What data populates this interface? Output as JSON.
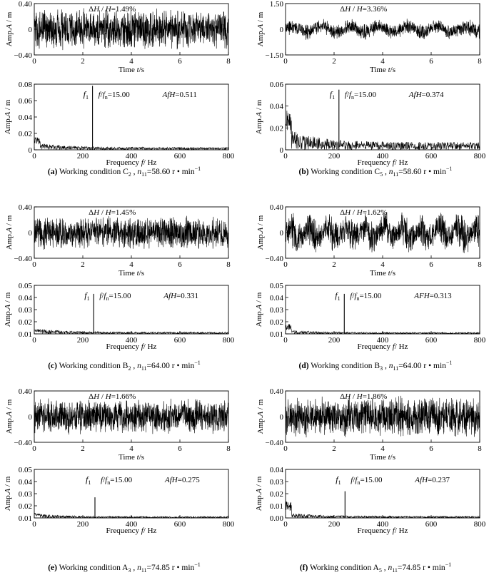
{
  "panels": [
    {
      "caption": {
        "letter": "(a)",
        "text": " Working condition C",
        "sub": "2",
        "n_sub": "11",
        "value": "=58.60 r • min",
        "sup": "−1"
      },
      "time": {
        "title": "Time t/s",
        "ylabel": "Amp.A / m",
        "ylim": [
          -0.4,
          0.4
        ],
        "yticks": [
          "0.40",
          "0",
          "−0.40"
        ],
        "xticks": [
          "0",
          "2",
          "4",
          "6",
          "8"
        ],
        "annotation": "ΔH / H=1.49%",
        "series": {
          "name": "pressure fluctuation",
          "xlim": [
            0,
            8
          ],
          "amplitude": 0.3
        }
      },
      "spectrum": {
        "title": "Frequency f/ Hz",
        "ylabel": "Amp.A / m",
        "ylim": [
          0,
          0.08
        ],
        "yticks": [
          "0",
          "0.02",
          "0.04",
          "0.06",
          "0.08"
        ],
        "xticks": [
          "0",
          "200",
          "400",
          "600",
          "800"
        ],
        "peak_label": "f",
        "peak_sub": "1",
        "ratio_text": "f/f",
        "ratio_sub": "n",
        "ratio_value": "=15.00",
        "afh": "AfH=0.511",
        "peak": {
          "frequency": 240,
          "amplitude": 0.078
        },
        "low_freq_amplitude": 0.016,
        "noise_level": 0.003
      }
    },
    {
      "caption": {
        "letter": "(b)",
        "text": " Working condition C",
        "sub": "5",
        "n_sub": "11",
        "value": "=58.60 r • min",
        "sup": "−1"
      },
      "time": {
        "title": "Time t/s",
        "ylabel": "Amp.A / m",
        "ylim": [
          -1.5,
          1.5
        ],
        "yticks": [
          "1.50",
          "0",
          "−1.50"
        ],
        "xticks": [
          "0",
          "2",
          "4",
          "6",
          "8"
        ],
        "annotation": "ΔH / H=3.36%",
        "series": {
          "name": "pressure fluctuation",
          "xlim": [
            0,
            8
          ],
          "amplitude": 0.55
        }
      },
      "spectrum": {
        "title": "Frequency f/ Hz",
        "ylabel": "Amp.A / m",
        "ylim": [
          0,
          0.06
        ],
        "yticks": [
          "0",
          "0.02",
          "0.04",
          "0.06"
        ],
        "xticks": [
          "0",
          "200",
          "400",
          "600",
          "800"
        ],
        "peak_label": "f",
        "peak_sub": "1",
        "ratio_text": "f/f",
        "ratio_sub": "n",
        "ratio_value": "=15.00",
        "afh": "AfH=0.374",
        "peak": {
          "frequency": 220,
          "amplitude": 0.055
        },
        "low_freq_amplitude": 0.036,
        "noise_level": 0.007
      }
    },
    {
      "caption": {
        "letter": "(c)",
        "text": " Working condition B",
        "sub": "2",
        "n_sub": "11",
        "value": "=64.00 r • min",
        "sup": "−1"
      },
      "time": {
        "title": "Time t/s",
        "ylabel": "Amp.A / m",
        "ylim": [
          -0.4,
          0.4
        ],
        "yticks": [
          "0.40",
          "0",
          "−0.40"
        ],
        "xticks": [
          "0",
          "2",
          "4",
          "6",
          "8"
        ],
        "annotation": "ΔH / H=1.45%",
        "series": {
          "name": "pressure fluctuation",
          "xlim": [
            0,
            8
          ],
          "amplitude": 0.25
        }
      },
      "spectrum": {
        "title": "Frequency f/ Hz",
        "ylabel": "Amp.A / m",
        "ylim": [
          0.01,
          0.05
        ],
        "yticks": [
          "0.01",
          "0.02",
          "0.03",
          "0.04",
          "0.05"
        ],
        "xticks": [
          "0",
          "200",
          "400",
          "600",
          "800"
        ],
        "peak_label": "f",
        "peak_sub": "1",
        "ratio_text": "f/f",
        "ratio_sub": "n",
        "ratio_value": "=15.00",
        "afh": "AfH=0.331",
        "peak": {
          "frequency": 245,
          "amplitude": 0.043
        },
        "low_freq_amplitude": 0.014,
        "noise_level": 0.0015
      }
    },
    {
      "caption": {
        "letter": "(d)",
        "text": " Working condition B",
        "sub": "3",
        "n_sub": "11",
        "value": "=64.00 r • min",
        "sup": "−1"
      },
      "time": {
        "title": "Time t/s",
        "ylabel": "Amp.A / m",
        "ylim": [
          -0.4,
          0.4
        ],
        "yticks": [
          "0.40",
          "0",
          "−0.40"
        ],
        "xticks": [
          "0",
          "2",
          "4",
          "6",
          "8"
        ],
        "annotation": "ΔH / H=1.62%",
        "series": {
          "name": "pressure fluctuation",
          "xlim": [
            0,
            8
          ],
          "amplitude": 0.28
        }
      },
      "spectrum": {
        "title": "Frequency f/ Hz",
        "ylabel": "Amp.A / m",
        "ylim": [
          0.01,
          0.05
        ],
        "yticks": [
          "0.01",
          "0.02",
          "0.03",
          "0.04",
          "0.05"
        ],
        "xticks": [
          "0",
          "200",
          "400",
          "600",
          "800"
        ],
        "peak_label": "f",
        "peak_sub": "1",
        "ratio_text": "f/f",
        "ratio_sub": "n",
        "ratio_value": "=15.00",
        "afh": "AFH=0.313",
        "peak": {
          "frequency": 242,
          "amplitude": 0.043
        },
        "low_freq_amplitude": 0.018,
        "noise_level": 0.0012
      }
    },
    {
      "caption": {
        "letter": "(e)",
        "text": " Working condition A",
        "sub": "3",
        "n_sub": "11",
        "value": "=74.85 r • min",
        "sup": "−1"
      },
      "time": {
        "title": "Time t/s",
        "ylabel": "Amp.A / m",
        "ylim": [
          -0.4,
          0.4
        ],
        "yticks": [
          "0.40",
          "0",
          "−0.40"
        ],
        "xticks": [
          "0",
          "2",
          "4",
          "6",
          "8"
        ],
        "annotation": "ΔH / H=1.66%",
        "series": {
          "name": "pressure fluctuation",
          "xlim": [
            0,
            8
          ],
          "amplitude": 0.26
        }
      },
      "spectrum": {
        "title": "Frequency f/ Hz",
        "ylabel": "Amp.A / m",
        "ylim": [
          0.01,
          0.05
        ],
        "yticks": [
          "0.01",
          "0.02",
          "0.03",
          "0.04",
          "0.05"
        ],
        "xticks": [
          "0",
          "200",
          "400",
          "600",
          "800"
        ],
        "peak_label": "f",
        "peak_sub": "1",
        "ratio_text": "f/f",
        "ratio_sub": "n",
        "ratio_value": "=15.00",
        "afh": "AfH=0.275",
        "peak": {
          "frequency": 250,
          "amplitude": 0.027
        },
        "low_freq_amplitude": 0.014,
        "noise_level": 0.0012
      }
    },
    {
      "caption": {
        "letter": "(f)",
        "text": " Working condition A",
        "sub": "5",
        "n_sub": "11",
        "value": "=74.85 r • min",
        "sup": "−1"
      },
      "time": {
        "title": "Time t/s",
        "ylabel": "Amp.A / m",
        "ylim": [
          -0.4,
          0.4
        ],
        "yticks": [
          "0.40",
          "0",
          "−0.40"
        ],
        "xticks": [
          "0",
          "2",
          "4",
          "6",
          "8"
        ],
        "annotation": "ΔH / H=1.86%",
        "series": {
          "name": "pressure fluctuation",
          "xlim": [
            0,
            8
          ],
          "amplitude": 0.3
        }
      },
      "spectrum": {
        "title": "Frequency f/ Hz",
        "ylabel": "Amp.A / m",
        "ylim": [
          0,
          0.04
        ],
        "yticks": [
          "0.00",
          "0.01",
          "0.02",
          "0.03",
          "0.04"
        ],
        "xticks": [
          "0",
          "200",
          "400",
          "600",
          "800"
        ],
        "peak_label": "f",
        "peak_sub": "1",
        "ratio_text": "f/f",
        "ratio_sub": "n",
        "ratio_value": "=15.00",
        "afh": "AfH=0.237",
        "peak": {
          "frequency": 245,
          "amplitude": 0.022
        },
        "low_freq_amplitude": 0.014,
        "noise_level": 0.0015
      }
    }
  ],
  "chart_data": [
    {
      "type": "line",
      "panel": "a-time",
      "xlabel": "Time t/s",
      "ylabel": "Amp.A / m",
      "xlim": [
        0,
        8
      ],
      "ylim": [
        -0.4,
        0.4
      ],
      "annotation": "ΔH / H=1.49%"
    },
    {
      "type": "line",
      "panel": "a-spectrum",
      "xlabel": "Frequency f/ Hz",
      "ylabel": "Amp.A / m",
      "xlim": [
        0,
        800
      ],
      "ylim": [
        0,
        0.08
      ],
      "peak": {
        "x": 240,
        "y": 0.078
      },
      "annotations": [
        "f/fn=15.00",
        "AfH=0.511"
      ]
    },
    {
      "type": "line",
      "panel": "b-time",
      "xlabel": "Time t/s",
      "ylabel": "Amp.A / m",
      "xlim": [
        0,
        8
      ],
      "ylim": [
        -1.5,
        1.5
      ],
      "annotation": "ΔH / H=3.36%"
    },
    {
      "type": "line",
      "panel": "b-spectrum",
      "xlabel": "Frequency f/ Hz",
      "ylabel": "Amp.A / m",
      "xlim": [
        0,
        800
      ],
      "ylim": [
        0,
        0.06
      ],
      "peak": {
        "x": 220,
        "y": 0.055
      },
      "annotations": [
        "f/fn=15.00",
        "AfH=0.374"
      ]
    },
    {
      "type": "line",
      "panel": "c-time",
      "xlabel": "Time t/s",
      "ylabel": "Amp.A / m",
      "xlim": [
        0,
        8
      ],
      "ylim": [
        -0.4,
        0.4
      ],
      "annotation": "ΔH / H=1.45%"
    },
    {
      "type": "line",
      "panel": "c-spectrum",
      "xlabel": "Frequency f/ Hz",
      "ylabel": "Amp.A / m",
      "xlim": [
        0,
        800
      ],
      "ylim": [
        0.01,
        0.05
      ],
      "peak": {
        "x": 245,
        "y": 0.043
      },
      "annotations": [
        "f/fn=15.00",
        "AfH=0.331"
      ]
    },
    {
      "type": "line",
      "panel": "d-time",
      "xlabel": "Time t/s",
      "ylabel": "Amp.A / m",
      "xlim": [
        0,
        8
      ],
      "ylim": [
        -0.4,
        0.4
      ],
      "annotation": "ΔH / H=1.62%"
    },
    {
      "type": "line",
      "panel": "d-spectrum",
      "xlabel": "Frequency f/ Hz",
      "ylabel": "Amp.A / m",
      "xlim": [
        0,
        800
      ],
      "ylim": [
        0.01,
        0.05
      ],
      "peak": {
        "x": 242,
        "y": 0.043
      },
      "annotations": [
        "f/fn=15.00",
        "AFH=0.313"
      ]
    },
    {
      "type": "line",
      "panel": "e-time",
      "xlabel": "Time t/s",
      "ylabel": "Amp.A / m",
      "xlim": [
        0,
        8
      ],
      "ylim": [
        -0.4,
        0.4
      ],
      "annotation": "ΔH / H=1.66%"
    },
    {
      "type": "line",
      "panel": "e-spectrum",
      "xlabel": "Frequency f/ Hz",
      "ylabel": "Amp.A / m",
      "xlim": [
        0,
        800
      ],
      "ylim": [
        0.01,
        0.05
      ],
      "peak": {
        "x": 250,
        "y": 0.027
      },
      "annotations": [
        "f/fn=15.00",
        "AfH=0.275"
      ]
    },
    {
      "type": "line",
      "panel": "f-time",
      "xlabel": "Time t/s",
      "ylabel": "Amp.A / m",
      "xlim": [
        0,
        8
      ],
      "ylim": [
        -0.4,
        0.4
      ],
      "annotation": "ΔH / H=1.86%"
    },
    {
      "type": "line",
      "panel": "f-spectrum",
      "xlabel": "Frequency f/ Hz",
      "ylabel": "Amp.A / m",
      "xlim": [
        0,
        800
      ],
      "ylim": [
        0,
        0.04
      ],
      "peak": {
        "x": 245,
        "y": 0.022
      },
      "annotations": [
        "f/fn=15.00",
        "AfH=0.237"
      ]
    }
  ]
}
